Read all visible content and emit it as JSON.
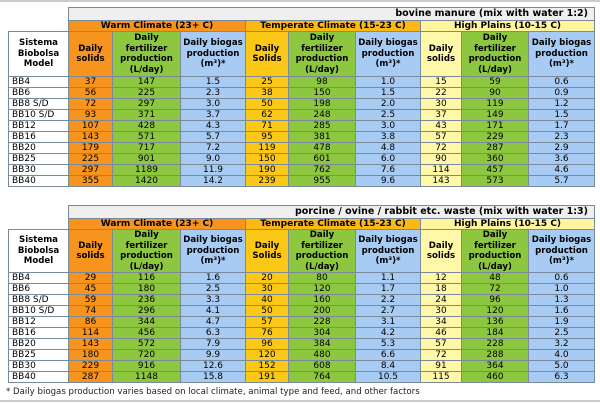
{
  "columns": {
    "model": "Sistema Biobolsa Model",
    "solids": "Daily solids",
    "solids_cap": "Daily Solids",
    "fert": "Daily fertilizer production (L/day)",
    "biogas": "Daily biogas production (m³)*"
  },
  "groups": [
    "Warm Climate (23+ C)",
    "Temperate Climate (15-23 C)",
    "High Plains (10-15 C)"
  ],
  "tables": [
    {
      "title": "bovine manure (mix with water 1:2)",
      "rows": [
        [
          "BB4",
          "37",
          "147",
          "1.5",
          "25",
          "98",
          "1.0",
          "15",
          "59",
          "0.6"
        ],
        [
          "BB6",
          "56",
          "225",
          "2.3",
          "38",
          "150",
          "1.5",
          "22",
          "90",
          "0.9"
        ],
        [
          "BB8 S/D",
          "72",
          "297",
          "3.0",
          "50",
          "198",
          "2.0",
          "30",
          "119",
          "1.2"
        ],
        [
          "BB10 S/D",
          "93",
          "371",
          "3.7",
          "62",
          "248",
          "2.5",
          "37",
          "149",
          "1.5"
        ],
        [
          "BB12",
          "107",
          "428",
          "4.3",
          "71",
          "285",
          "3.0",
          "43",
          "171",
          "1.7"
        ],
        [
          "BB16",
          "143",
          "571",
          "5.7",
          "95",
          "381",
          "3.8",
          "57",
          "229",
          "2.3"
        ],
        [
          "BB20",
          "179",
          "717",
          "7.2",
          "119",
          "478",
          "4.8",
          "72",
          "287",
          "2.9"
        ],
        [
          "BB25",
          "225",
          "901",
          "9.0",
          "150",
          "601",
          "6.0",
          "90",
          "360",
          "3.6"
        ],
        [
          "BB30",
          "297",
          "1189",
          "11.9",
          "190",
          "762",
          "7.6",
          "114",
          "457",
          "4.6"
        ],
        [
          "BB40",
          "355",
          "1420",
          "14.2",
          "239",
          "955",
          "9.6",
          "143",
          "573",
          "5.7"
        ]
      ]
    },
    {
      "title": "porcine / ovine / rabbit etc. waste (mix with water 1:3)",
      "rows": [
        [
          "BB4",
          "29",
          "116",
          "1.6",
          "20",
          "80",
          "1.1",
          "12",
          "48",
          "0.6"
        ],
        [
          "BB6",
          "45",
          "180",
          "2.5",
          "30",
          "120",
          "1.7",
          "18",
          "72",
          "1.0"
        ],
        [
          "BB8 S/D",
          "59",
          "236",
          "3.3",
          "40",
          "160",
          "2.2",
          "24",
          "96",
          "1.3"
        ],
        [
          "BB10 S/D",
          "74",
          "296",
          "4.1",
          "50",
          "200",
          "2.7",
          "30",
          "120",
          "1.6"
        ],
        [
          "BB12",
          "86",
          "344",
          "4.7",
          "57",
          "228",
          "3.1",
          "34",
          "136",
          "1.9"
        ],
        [
          "BB16",
          "114",
          "456",
          "6.3",
          "76",
          "304",
          "4.2",
          "46",
          "184",
          "2.5"
        ],
        [
          "BB20",
          "143",
          "572",
          "7.9",
          "96",
          "384",
          "5.3",
          "57",
          "228",
          "3.2"
        ],
        [
          "BB25",
          "180",
          "720",
          "9.9",
          "120",
          "480",
          "6.6",
          "72",
          "288",
          "4.0"
        ],
        [
          "BB30",
          "229",
          "916",
          "12.6",
          "152",
          "608",
          "8.4",
          "91",
          "364",
          "5.0"
        ],
        [
          "BB40",
          "287",
          "1148",
          "15.8",
          "191",
          "764",
          "10.5",
          "115",
          "460",
          "6.3"
        ]
      ]
    }
  ],
  "footnote": "* Daily biogas production varies based on local climate, animal type and feed, and other factors",
  "colors": {
    "warm": "#f7941d",
    "fertilizer": "#8dc63f",
    "biogas": "#a7cbf2",
    "temperate": "#fcc817",
    "high_plains": "#fff8a8"
  }
}
